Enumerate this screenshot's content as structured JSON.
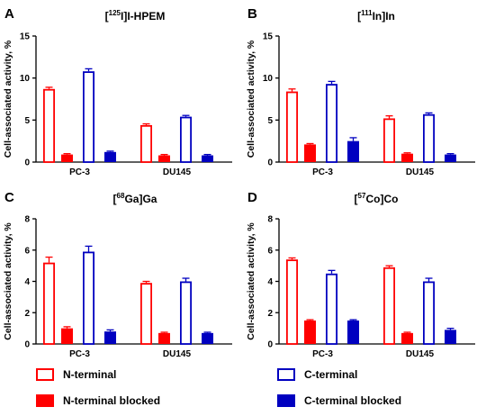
{
  "legend": [
    {
      "name": "N-terminal",
      "color": "#ff0000",
      "filled": false
    },
    {
      "name": "N-terminal blocked",
      "color": "#ff0000",
      "filled": true
    },
    {
      "name": "C-terminal",
      "color": "#0000c0",
      "filled": false
    },
    {
      "name": "C-terminal blocked",
      "color": "#0000c0",
      "filled": true
    }
  ],
  "chart_data": [
    {
      "panel": "A",
      "type": "bar",
      "title": {
        "prefix": "[",
        "sup": "125",
        "rest": "I]I-HPEM"
      },
      "ylabel": "Cell-associated activity, %",
      "ylim": [
        0,
        15
      ],
      "yticks": [
        "0",
        "5",
        "10",
        "15"
      ],
      "categories": [
        "PC-3",
        "DU145"
      ],
      "series": [
        {
          "name": "N-terminal",
          "values": [
            8.7,
            4.4
          ],
          "errors": [
            0.2,
            0.15
          ]
        },
        {
          "name": "N-terminal blocked",
          "values": [
            0.9,
            0.8
          ],
          "errors": [
            0.1,
            0.1
          ]
        },
        {
          "name": "C-terminal",
          "values": [
            10.8,
            5.4
          ],
          "errors": [
            0.3,
            0.15
          ]
        },
        {
          "name": "C-terminal blocked",
          "values": [
            1.2,
            0.8
          ],
          "errors": [
            0.1,
            0.1
          ]
        }
      ]
    },
    {
      "panel": "B",
      "type": "bar",
      "title": {
        "prefix": "[",
        "sup": "111",
        "rest": "In]In"
      },
      "ylabel": "Cell-associated activity, %",
      "ylim": [
        0,
        15
      ],
      "yticks": [
        "0",
        "5",
        "10",
        "15"
      ],
      "categories": [
        "PC-3",
        "DU145"
      ],
      "series": [
        {
          "name": "N-terminal",
          "values": [
            8.4,
            5.2
          ],
          "errors": [
            0.3,
            0.3
          ]
        },
        {
          "name": "N-terminal blocked",
          "values": [
            2.1,
            1.0
          ],
          "errors": [
            0.1,
            0.1
          ]
        },
        {
          "name": "C-terminal",
          "values": [
            9.3,
            5.7
          ],
          "errors": [
            0.3,
            0.15
          ]
        },
        {
          "name": "C-terminal blocked",
          "values": [
            2.5,
            0.9
          ],
          "errors": [
            0.4,
            0.1
          ]
        }
      ]
    },
    {
      "panel": "C",
      "type": "bar",
      "title": {
        "prefix": "[",
        "sup": "68",
        "rest": "Ga]Ga"
      },
      "ylabel": "Cell-associated activity, %",
      "ylim": [
        0,
        8
      ],
      "yticks": [
        "0",
        "2",
        "4",
        "6",
        "8"
      ],
      "categories": [
        "PC-3",
        "DU145"
      ],
      "series": [
        {
          "name": "N-terminal",
          "values": [
            5.2,
            3.9
          ],
          "errors": [
            0.35,
            0.1
          ]
        },
        {
          "name": "N-terminal blocked",
          "values": [
            1.0,
            0.7
          ],
          "errors": [
            0.1,
            0.05
          ]
        },
        {
          "name": "C-terminal",
          "values": [
            5.9,
            4.0
          ],
          "errors": [
            0.35,
            0.2
          ]
        },
        {
          "name": "C-terminal blocked",
          "values": [
            0.8,
            0.7
          ],
          "errors": [
            0.1,
            0.05
          ]
        }
      ]
    },
    {
      "panel": "D",
      "type": "bar",
      "title": {
        "prefix": "[",
        "sup": "57",
        "rest": "Co]Co"
      },
      "ylabel": "Cell-associated activity, %",
      "ylim": [
        0,
        8
      ],
      "yticks": [
        "0",
        "2",
        "4",
        "6",
        "8"
      ],
      "categories": [
        "PC-3",
        "DU145"
      ],
      "series": [
        {
          "name": "N-terminal",
          "values": [
            5.4,
            4.9
          ],
          "errors": [
            0.1,
            0.1
          ]
        },
        {
          "name": "N-terminal blocked",
          "values": [
            1.5,
            0.7
          ],
          "errors": [
            0.05,
            0.05
          ]
        },
        {
          "name": "C-terminal",
          "values": [
            4.5,
            4.0
          ],
          "errors": [
            0.2,
            0.2
          ]
        },
        {
          "name": "C-terminal blocked",
          "values": [
            1.5,
            0.9
          ],
          "errors": [
            0.05,
            0.1
          ]
        }
      ]
    }
  ]
}
